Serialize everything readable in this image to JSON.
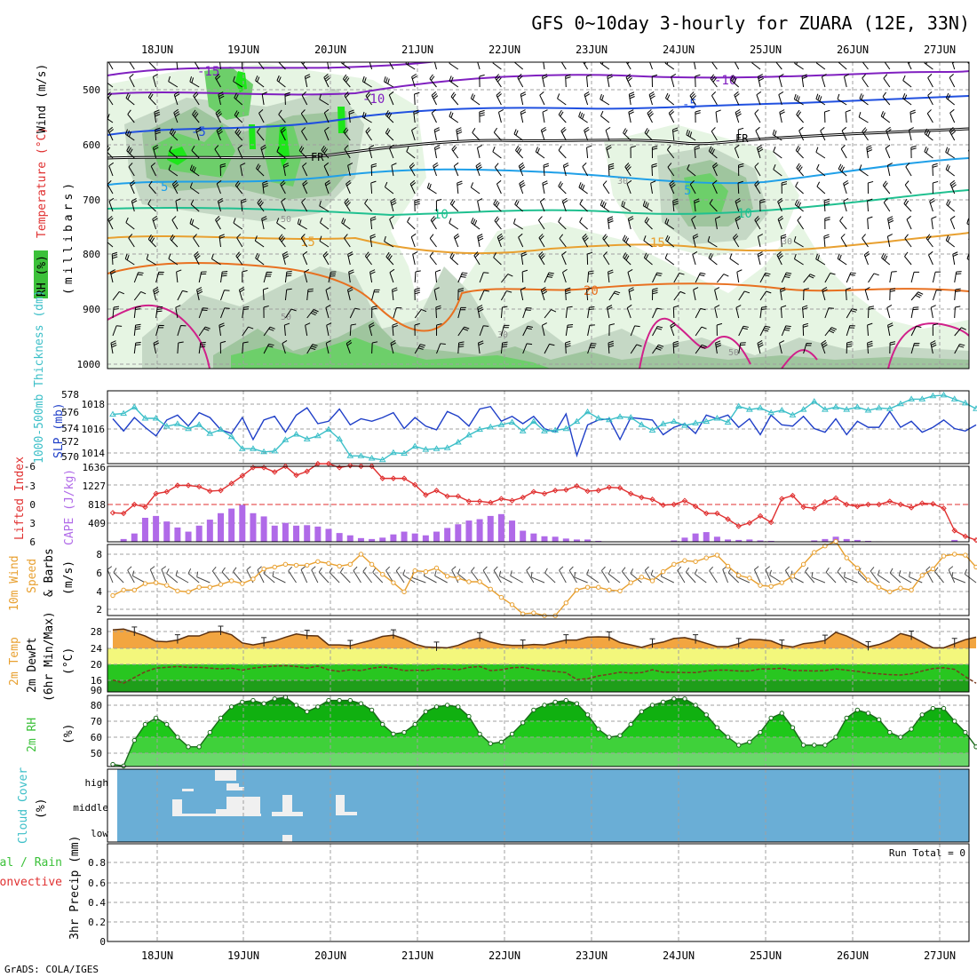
{
  "title": "GFS 0~10day 3-hourly for ZUARA (12E, 33N)",
  "credit": "GrADS: COLA/IGES",
  "dates": [
    "18JUN",
    "19JUN",
    "20JUN",
    "21JUN",
    "22JUN",
    "23JUN",
    "24JUN",
    "25JUN",
    "26JUN",
    "27JUN"
  ],
  "colors": {
    "grid": "#a0a0a0",
    "frame": "#000000",
    "slp": "#1f3fc8",
    "thick": "#3cbfc8",
    "li": "#e03030",
    "cape": "#b06ae8",
    "wind10": "#e8a030",
    "barb": "#404040",
    "cloud": "#6aaed6"
  },
  "panels": {
    "upper": {
      "ylabel_rh": "RH (%)",
      "ylabel_temp": "Temperature (°C)",
      "ylabel_wind": "Wind (m/s)",
      "ylabel_mb": "(millibars)",
      "yticks": [
        "500",
        "600",
        "700",
        "800",
        "900",
        "1000"
      ],
      "isotherm_labels": [
        "-15",
        "-10",
        "-10",
        "-5",
        "-5",
        "FR",
        "FR",
        "5",
        "5",
        "10",
        "10",
        "15",
        "15",
        "20"
      ],
      "rh_labels": [
        "30",
        "50",
        "50",
        "30",
        "50",
        "30"
      ]
    },
    "slp": {
      "ylabel_slp": "SLP (mb)",
      "ylabel_thick": "1000-500mb Thickness (dm)",
      "yticks_left": [
        "578",
        "576",
        "574",
        "572",
        "570"
      ],
      "yticks_right": [
        "1018",
        "1016",
        "1014"
      ]
    },
    "cape": {
      "ylabel_li": "Lifted Index",
      "ylabel_cape": "CAPE (J/kg)",
      "yticks_left": [
        "-6",
        "-3",
        "0",
        "3",
        "6"
      ],
      "yticks_right": [
        "1636",
        "1227",
        "818",
        "409"
      ]
    },
    "wind10": {
      "ylabel_1": "10m Wind",
      "ylabel_2": "Speed",
      "ylabel_3": "& Barbs",
      "ylabel_unit": "(m/s)",
      "yticks": [
        "8",
        "6",
        "4",
        "2"
      ]
    },
    "temp2m": {
      "ylabel_1": "2m Temp",
      "ylabel_2": "2m DewPt",
      "ylabel_3": "(6hr Min/Max)",
      "ylabel_unit": "(°C)",
      "yticks": [
        "28",
        "24",
        "20",
        "16",
        "90"
      ]
    },
    "rh2m": {
      "ylabel_1": "2m RH",
      "ylabel_unit": "(%)",
      "yticks": [
        "80",
        "70",
        "60",
        "50"
      ]
    },
    "cloud": {
      "ylabel_1": "Cloud Cover",
      "ylabel_unit": "(%)",
      "levels": [
        "high",
        "middle",
        "low"
      ]
    },
    "precip": {
      "ylabel_1": "Total / Rain",
      "ylabel_2": "Convective",
      "ylabel_3": "3hr Precip (mm)",
      "yticks": [
        "0.8",
        "0.6",
        "0.4",
        "0.2",
        "0"
      ],
      "run_total": "Run Total = 0"
    }
  },
  "chart_data": [
    {
      "type": "line",
      "name": "slp",
      "unit": "mb",
      "series": [
        {
          "name": "SLP",
          "values": [
            1016.8,
            1015.8,
            1016.9,
            1016.1,
            1015.4,
            1016.7,
            1017.1,
            1016.2,
            1017.3,
            1016.9,
            1015.9,
            1015.6,
            1016.9,
            1015.1,
            1016.7,
            1017.0,
            1015.7,
            1017.1,
            1017.7,
            1016.4,
            1016.6,
            1017.6,
            1016.3,
            1016.8,
            1016.6,
            1016.9,
            1017.3,
            1016.0,
            1016.9,
            1016.2,
            1015.9,
            1017.4,
            1017.0,
            1016.2,
            1017.6,
            1017.8,
            1016.6,
            1017.0,
            1016.4,
            1017.0,
            1016.0,
            1015.7,
            1017.2,
            1013.8,
            1016.3,
            1016.7,
            1016.8,
            1015.1,
            1016.9,
            1016.8,
            1016.7,
            1015.5,
            1016.1,
            1016.4,
            1015.6,
            1017.1,
            1016.8,
            1017.1,
            1016.1,
            1016.8,
            1015.5,
            1017.1,
            1016.3,
            1016.2,
            1017.0,
            1016.0,
            1015.7,
            1016.8,
            1015.5,
            1016.6,
            1016.1,
            1016.1,
            1017.4,
            1016.1,
            1016.6,
            1015.7,
            1016.1,
            1016.7,
            1016.0,
            1015.8,
            1016.3
          ]
        }
      ]
    },
    {
      "type": "line",
      "name": "thickness",
      "unit": "dm",
      "series": [
        {
          "name": "1000-500mb Thickness",
          "values": [
            575.5,
            575.6,
            576.4,
            575.0,
            575.0,
            574.0,
            574.3,
            573.7,
            574.2,
            573.1,
            573.6,
            572.7,
            571.2,
            571.2,
            570.8,
            570.9,
            572.3,
            573.0,
            572.4,
            572.8,
            573.6,
            572.4,
            570.3,
            570.3,
            570.0,
            569.8,
            570.7,
            570.6,
            571.5,
            571.1,
            571.2,
            571.3,
            572.0,
            572.9,
            573.6,
            573.9,
            574.2,
            574.5,
            573.4,
            574.6,
            573.4,
            573.5,
            573.7,
            574.6,
            575.8,
            575.0,
            574.8,
            575.2,
            575.1,
            574.2,
            573.5,
            574.3,
            574.6,
            574.1,
            574.4,
            574.6,
            575.0,
            574.5,
            576.5,
            576.1,
            576.3,
            575.7,
            576.0,
            575.4,
            576.1,
            577.1,
            576.1,
            576.4,
            576.1,
            576.4,
            576.0,
            576.3,
            576.2,
            576.8,
            577.4,
            577.4,
            577.8,
            577.9,
            577.4,
            576.9,
            576.2
          ]
        }
      ]
    },
    {
      "type": "bar",
      "name": "cape",
      "unit": "J/kg",
      "values": [
        0,
        60,
        180,
        520,
        560,
        440,
        310,
        220,
        350,
        480,
        620,
        720,
        800,
        620,
        550,
        350,
        410,
        350,
        360,
        330,
        280,
        190,
        140,
        80,
        60,
        90,
        160,
        220,
        180,
        140,
        220,
        300,
        380,
        460,
        490,
        560,
        600,
        460,
        240,
        180,
        120,
        110,
        70,
        50,
        50,
        20,
        5,
        0,
        0,
        0,
        5,
        5,
        30,
        90,
        180,
        210,
        110,
        50,
        40,
        50,
        30,
        20,
        0,
        0,
        0,
        30,
        60,
        110,
        60,
        40,
        20,
        10,
        0,
        0,
        0,
        0,
        0,
        5,
        40,
        0,
        0
      ]
    },
    {
      "type": "line",
      "name": "lifted_index",
      "unit": "K",
      "series": [
        {
          "name": "Lifted Index",
          "values": [
            1.3,
            1.4,
            0.0,
            0.4,
            -1.7,
            -2.0,
            -3.0,
            -3.0,
            -2.8,
            -2.1,
            -2.2,
            -3.3,
            -4.5,
            -5.8,
            -5.8,
            -5.1,
            -6.0,
            -4.6,
            -5.2,
            -6.4,
            -6.4,
            -5.8,
            -6.1,
            -6.0,
            -6.0,
            -4.1,
            -4.1,
            -4.1,
            -3.1,
            -1.5,
            -2.2,
            -1.3,
            -1.3,
            -0.5,
            -0.5,
            -0.3,
            -0.9,
            -0.6,
            -1.1,
            -2.0,
            -1.7,
            -2.2,
            -2.3,
            -2.9,
            -2.1,
            -2.2,
            -2.7,
            -2.6,
            -1.7,
            -1.1,
            -0.8,
            0.1,
            0.0,
            -0.6,
            0.3,
            1.4,
            1.4,
            2.3,
            3.4,
            2.9,
            1.8,
            2.8,
            -0.9,
            -1.4,
            0.4,
            0.6,
            -0.4,
            -1.0,
            0.0,
            0.3,
            0.0,
            0.0,
            -0.5,
            0.0,
            0.5,
            -0.2,
            -0.1,
            0.6,
            4.1,
            5.0,
            5.6
          ]
        }
      ]
    },
    {
      "type": "line",
      "name": "wind10m",
      "unit": "m/s",
      "series": [
        {
          "name": "10m Wind Speed",
          "values": [
            3.5,
            4.1,
            4.1,
            4.8,
            4.9,
            4.6,
            4.0,
            3.9,
            4.4,
            4.4,
            4.7,
            5.1,
            4.8,
            5.3,
            6.4,
            6.6,
            6.9,
            6.8,
            6.8,
            7.2,
            7.0,
            6.7,
            6.9,
            8.0,
            6.9,
            5.8,
            4.9,
            3.9,
            6.2,
            6.1,
            6.5,
            5.6,
            5.4,
            5.0,
            5.0,
            4.2,
            3.3,
            2.5,
            1.5,
            1.6,
            1.3,
            1.3,
            2.7,
            4.1,
            4.4,
            4.4,
            4.1,
            4.0,
            4.9,
            5.5,
            5.1,
            6.1,
            6.9,
            7.3,
            7.2,
            7.6,
            7.9,
            6.7,
            5.7,
            5.4,
            4.6,
            4.5,
            4.9,
            5.6,
            6.9,
            8.2,
            8.9,
            9.4,
            7.6,
            6.5,
            5.2,
            4.4,
            3.9,
            4.3,
            4.1,
            5.7,
            6.4,
            7.8,
            8.0,
            7.9,
            6.6
          ]
        }
      ]
    },
    {
      "type": "area",
      "name": "temp2m",
      "unit": "°C",
      "series": [
        {
          "name": "2m Temp",
          "values": [
            28.4,
            28.6,
            27.8,
            26.9,
            25.6,
            25.5,
            25.9,
            26.9,
            26.9,
            27.9,
            28.0,
            27.2,
            25.2,
            24.7,
            25.2,
            25.7,
            26.6,
            27.4,
            27.0,
            26.9,
            24.7,
            24.7,
            24.5,
            25.2,
            25.9,
            26.8,
            27.1,
            26.2,
            24.9,
            24.2,
            24.1,
            24.0,
            24.6,
            25.7,
            26.4,
            25.4,
            24.8,
            24.6,
            24.6,
            24.8,
            24.7,
            25.3,
            25.9,
            25.9,
            26.6,
            26.7,
            26.6,
            25.3,
            24.7,
            24.1,
            24.9,
            25.4,
            26.3,
            26.5,
            25.9,
            25.1,
            24.3,
            24.3,
            25.0,
            26.1,
            26.0,
            25.7,
            24.6,
            24.2,
            25.0,
            25.3,
            25.8,
            27.8,
            26.9,
            25.6,
            24.2,
            24.8,
            25.8,
            27.5,
            26.8,
            25.4,
            24.0,
            24.0,
            25.0,
            26.0,
            26.6
          ]
        },
        {
          "name": "2m DewPt",
          "values": [
            16.1,
            15.3,
            16.7,
            18.1,
            19.0,
            19.2,
            19.4,
            19.2,
            19.2,
            19.0,
            18.8,
            19.0,
            18.5,
            19.0,
            19.3,
            19.5,
            19.6,
            19.4,
            19.0,
            19.5,
            18.6,
            18.2,
            18.6,
            18.4,
            19.0,
            19.3,
            19.0,
            18.4,
            18.5,
            18.4,
            18.9,
            18.8,
            18.6,
            19.2,
            19.4,
            18.4,
            18.6,
            19.1,
            19.2,
            18.7,
            18.4,
            18.2,
            17.9,
            16.2,
            16.4,
            17.1,
            17.5,
            18.0,
            17.8,
            17.9,
            18.6,
            18.0,
            18.0,
            17.9,
            17.9,
            18.3,
            18.5,
            18.5,
            18.3,
            18.3,
            18.8,
            18.8,
            19.0,
            18.4,
            18.4,
            18.3,
            18.4,
            18.8,
            18.5,
            18.2,
            17.8,
            17.6,
            17.4,
            17.3,
            17.6,
            18.3,
            18.9,
            19.1,
            18.7,
            16.9,
            15.3
          ]
        }
      ]
    },
    {
      "type": "area",
      "name": "rh2m",
      "unit": "%",
      "series": [
        {
          "name": "2m RH",
          "values": [
            43,
            42,
            58,
            68,
            72,
            68,
            60,
            54,
            54,
            63,
            72,
            79,
            82,
            83,
            81,
            84,
            85,
            80,
            76,
            79,
            83,
            83,
            83,
            81,
            77,
            68,
            62,
            63,
            68,
            76,
            79,
            80,
            79,
            73,
            62,
            56,
            57,
            62,
            69,
            77,
            80,
            82,
            83,
            81,
            74,
            65,
            60,
            61,
            68,
            76,
            80,
            82,
            84,
            84,
            80,
            74,
            66,
            60,
            55,
            57,
            63,
            72,
            75,
            66,
            55,
            55,
            55,
            60,
            72,
            77,
            75,
            71,
            63,
            60,
            65,
            74,
            78,
            78,
            70,
            63,
            54
          ]
        }
      ]
    },
    {
      "type": "bar",
      "name": "precip3h",
      "unit": "mm",
      "values": [
        0,
        0,
        0,
        0,
        0,
        0,
        0,
        0,
        0,
        0,
        0,
        0,
        0,
        0,
        0,
        0,
        0,
        0,
        0,
        0,
        0,
        0,
        0,
        0,
        0,
        0,
        0,
        0,
        0,
        0,
        0,
        0,
        0,
        0,
        0,
        0,
        0,
        0,
        0,
        0,
        0,
        0,
        0,
        0,
        0,
        0,
        0,
        0,
        0,
        0,
        0,
        0,
        0,
        0,
        0,
        0,
        0,
        0,
        0,
        0,
        0,
        0,
        0,
        0,
        0,
        0,
        0,
        0,
        0,
        0,
        0,
        0,
        0,
        0,
        0,
        0,
        0,
        0,
        0,
        0,
        0
      ]
    }
  ]
}
